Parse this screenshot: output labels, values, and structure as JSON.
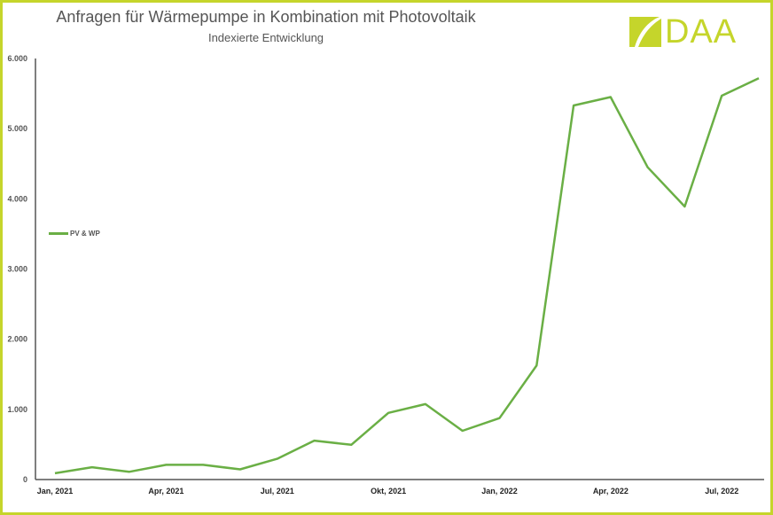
{
  "header": {
    "title": "Anfragen für Wärmepumpe in Kombination mit Photovoltaik",
    "subtitle": "Indexierte Entwicklung",
    "logo_text": "DAA"
  },
  "colors": {
    "frame": "#C5D52B",
    "logo": "#C5D52B",
    "series": "#6AAF45",
    "axis": "#555555"
  },
  "legend": {
    "items": [
      {
        "label": "PV & WP",
        "color": "#6AAF45"
      }
    ]
  },
  "chart_data": {
    "type": "line",
    "title": "Anfragen für Wärmepumpe in Kombination mit Photovoltaik",
    "subtitle": "Indexierte Entwicklung",
    "xlabel": "",
    "ylabel": "",
    "ylim": [
      0,
      6000
    ],
    "yticks": [
      0,
      1000,
      2000,
      3000,
      4000,
      5000,
      6000
    ],
    "ytick_labels": [
      "0",
      "1.000",
      "2.000",
      "3.000",
      "4.000",
      "5.000",
      "6.000"
    ],
    "xtick_labels": [
      "Jan, 2021",
      "Apr, 2021",
      "Jul, 2021",
      "Okt, 2021",
      "Jan, 2022",
      "Apr, 2022",
      "Jul, 2022"
    ],
    "xtick_indices": [
      0,
      3,
      6,
      9,
      12,
      15,
      18
    ],
    "grid": false,
    "legend_position": "left",
    "categories": [
      "Jan 2021",
      "Feb 2021",
      "Mär 2021",
      "Apr 2021",
      "Mai 2021",
      "Jun 2021",
      "Jul 2021",
      "Aug 2021",
      "Sep 2021",
      "Okt 2021",
      "Nov 2021",
      "Dez 2021",
      "Jan 2022",
      "Feb 2022",
      "Mär 2022",
      "Apr 2022",
      "Mai 2022",
      "Jun 2022",
      "Jul 2022",
      "Aug 2022"
    ],
    "series": [
      {
        "name": "PV & WP",
        "color": "#6AAF45",
        "values": [
          90,
          175,
          110,
          210,
          210,
          145,
          295,
          555,
          495,
          950,
          1075,
          695,
          875,
          1625,
          5330,
          5450,
          4450,
          3890,
          5470,
          5720
        ]
      }
    ]
  }
}
